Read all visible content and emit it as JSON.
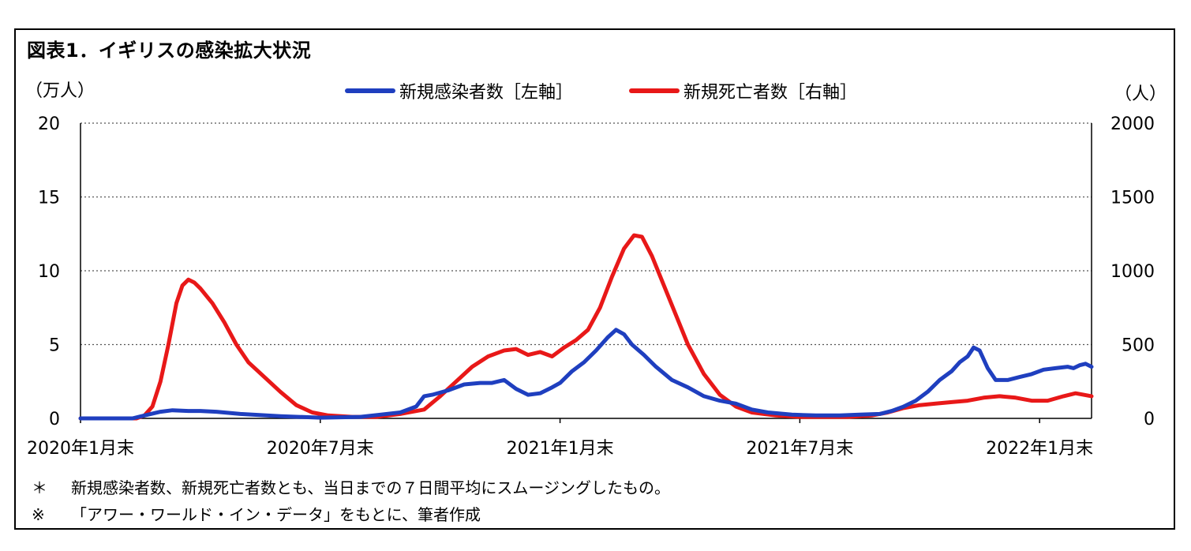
{
  "title": "図表1．イギリスの感染拡大状況",
  "notes": [
    {
      "mark": "＊",
      "text": "新規感染者数、新規死亡者数とも、当日までの７日間平均にスムージングしたもの。"
    },
    {
      "mark": "※",
      "text": "「アワー・ワールド・イン・データ」をもとに、筆者作成"
    }
  ],
  "chart_data": {
    "type": "line",
    "title": "図表1．イギリスの感染拡大状況",
    "left_axis": {
      "unit_label": "（万人）",
      "range": [
        0,
        20
      ],
      "ticks": [
        "0",
        "5",
        "10",
        "15",
        "20"
      ]
    },
    "right_axis": {
      "unit_label": "（人）",
      "range": [
        0,
        2000
      ],
      "ticks": [
        "0",
        "500",
        "1000",
        "1500",
        "2000"
      ]
    },
    "x_axis": {
      "range_months": [
        0,
        25.3
      ],
      "ticks": [
        {
          "label": "2020年1月末",
          "month": 0
        },
        {
          "label": "2020年7月末",
          "month": 6
        },
        {
          "label": "2021年1月末",
          "month": 12
        },
        {
          "label": "2021年7月末",
          "month": 18
        },
        {
          "label": "2022年1月末",
          "month": 24
        }
      ]
    },
    "x_unit": "months since 2020年1月末",
    "grid": "horizontal dotted",
    "legend": "top-center",
    "series": [
      {
        "name": "新規感染者数［左軸］",
        "axis": "left",
        "color": "#1f3fbf",
        "points": [
          [
            0,
            0
          ],
          [
            1.3,
            0
          ],
          [
            1.6,
            0.2
          ],
          [
            2.0,
            0.45
          ],
          [
            2.3,
            0.55
          ],
          [
            2.7,
            0.5
          ],
          [
            3.0,
            0.5
          ],
          [
            3.4,
            0.45
          ],
          [
            4.0,
            0.3
          ],
          [
            5.0,
            0.15
          ],
          [
            6.0,
            0.05
          ],
          [
            7.0,
            0.1
          ],
          [
            7.5,
            0.25
          ],
          [
            8.0,
            0.4
          ],
          [
            8.4,
            0.8
          ],
          [
            8.6,
            1.5
          ],
          [
            8.8,
            1.6
          ],
          [
            9.2,
            1.9
          ],
          [
            9.6,
            2.3
          ],
          [
            10.0,
            2.4
          ],
          [
            10.3,
            2.4
          ],
          [
            10.6,
            2.6
          ],
          [
            10.9,
            2.0
          ],
          [
            11.2,
            1.6
          ],
          [
            11.5,
            1.7
          ],
          [
            11.8,
            2.1
          ],
          [
            12.0,
            2.4
          ],
          [
            12.3,
            3.2
          ],
          [
            12.6,
            3.8
          ],
          [
            12.9,
            4.6
          ],
          [
            13.2,
            5.5
          ],
          [
            13.4,
            6.0
          ],
          [
            13.6,
            5.7
          ],
          [
            13.8,
            5.0
          ],
          [
            14.1,
            4.3
          ],
          [
            14.4,
            3.5
          ],
          [
            14.8,
            2.6
          ],
          [
            15.2,
            2.1
          ],
          [
            15.6,
            1.5
          ],
          [
            16.0,
            1.2
          ],
          [
            16.4,
            1.0
          ],
          [
            16.8,
            0.6
          ],
          [
            17.2,
            0.4
          ],
          [
            17.8,
            0.25
          ],
          [
            18.4,
            0.2
          ],
          [
            19.0,
            0.2
          ],
          [
            19.5,
            0.25
          ],
          [
            20.0,
            0.3
          ],
          [
            20.3,
            0.5
          ],
          [
            20.6,
            0.8
          ],
          [
            20.9,
            1.2
          ],
          [
            21.2,
            1.8
          ],
          [
            21.5,
            2.6
          ],
          [
            21.8,
            3.2
          ],
          [
            22.0,
            3.8
          ],
          [
            22.2,
            4.2
          ],
          [
            22.35,
            4.8
          ],
          [
            22.5,
            4.6
          ],
          [
            22.7,
            3.4
          ],
          [
            22.9,
            2.6
          ],
          [
            23.2,
            2.6
          ],
          [
            23.5,
            2.8
          ],
          [
            23.8,
            3.0
          ],
          [
            24.1,
            3.3
          ],
          [
            24.4,
            3.4
          ],
          [
            24.7,
            3.5
          ],
          [
            24.85,
            3.4
          ],
          [
            25.0,
            3.6
          ],
          [
            25.15,
            3.7
          ],
          [
            25.3,
            3.5
          ]
        ]
      },
      {
        "name": "新規死亡者数［右軸］",
        "axis": "right",
        "color": "#e81818",
        "points": [
          [
            0,
            0
          ],
          [
            1.4,
            0
          ],
          [
            1.6,
            20
          ],
          [
            1.8,
            80
          ],
          [
            2.0,
            250
          ],
          [
            2.2,
            500
          ],
          [
            2.4,
            780
          ],
          [
            2.55,
            900
          ],
          [
            2.7,
            940
          ],
          [
            2.85,
            920
          ],
          [
            3.0,
            880
          ],
          [
            3.3,
            780
          ],
          [
            3.6,
            650
          ],
          [
            3.9,
            500
          ],
          [
            4.2,
            380
          ],
          [
            4.6,
            280
          ],
          [
            5.0,
            180
          ],
          [
            5.4,
            90
          ],
          [
            5.8,
            40
          ],
          [
            6.2,
            20
          ],
          [
            6.8,
            10
          ],
          [
            7.4,
            10
          ],
          [
            8.0,
            30
          ],
          [
            8.6,
            60
          ],
          [
            9.0,
            150
          ],
          [
            9.4,
            250
          ],
          [
            9.8,
            350
          ],
          [
            10.2,
            420
          ],
          [
            10.6,
            460
          ],
          [
            10.9,
            470
          ],
          [
            11.2,
            430
          ],
          [
            11.5,
            450
          ],
          [
            11.8,
            420
          ],
          [
            12.1,
            480
          ],
          [
            12.4,
            530
          ],
          [
            12.7,
            600
          ],
          [
            13.0,
            750
          ],
          [
            13.3,
            960
          ],
          [
            13.6,
            1150
          ],
          [
            13.85,
            1240
          ],
          [
            14.05,
            1230
          ],
          [
            14.3,
            1100
          ],
          [
            14.6,
            900
          ],
          [
            14.9,
            700
          ],
          [
            15.2,
            500
          ],
          [
            15.6,
            300
          ],
          [
            16.0,
            160
          ],
          [
            16.4,
            80
          ],
          [
            16.8,
            40
          ],
          [
            17.4,
            20
          ],
          [
            18.0,
            10
          ],
          [
            18.6,
            10
          ],
          [
            19.2,
            10
          ],
          [
            19.8,
            20
          ],
          [
            20.2,
            40
          ],
          [
            20.6,
            70
          ],
          [
            21.0,
            90
          ],
          [
            21.4,
            100
          ],
          [
            21.8,
            110
          ],
          [
            22.2,
            120
          ],
          [
            22.6,
            140
          ],
          [
            23.0,
            150
          ],
          [
            23.4,
            140
          ],
          [
            23.8,
            120
          ],
          [
            24.2,
            120
          ],
          [
            24.6,
            150
          ],
          [
            24.9,
            170
          ],
          [
            25.1,
            160
          ],
          [
            25.3,
            150
          ]
        ]
      }
    ]
  }
}
